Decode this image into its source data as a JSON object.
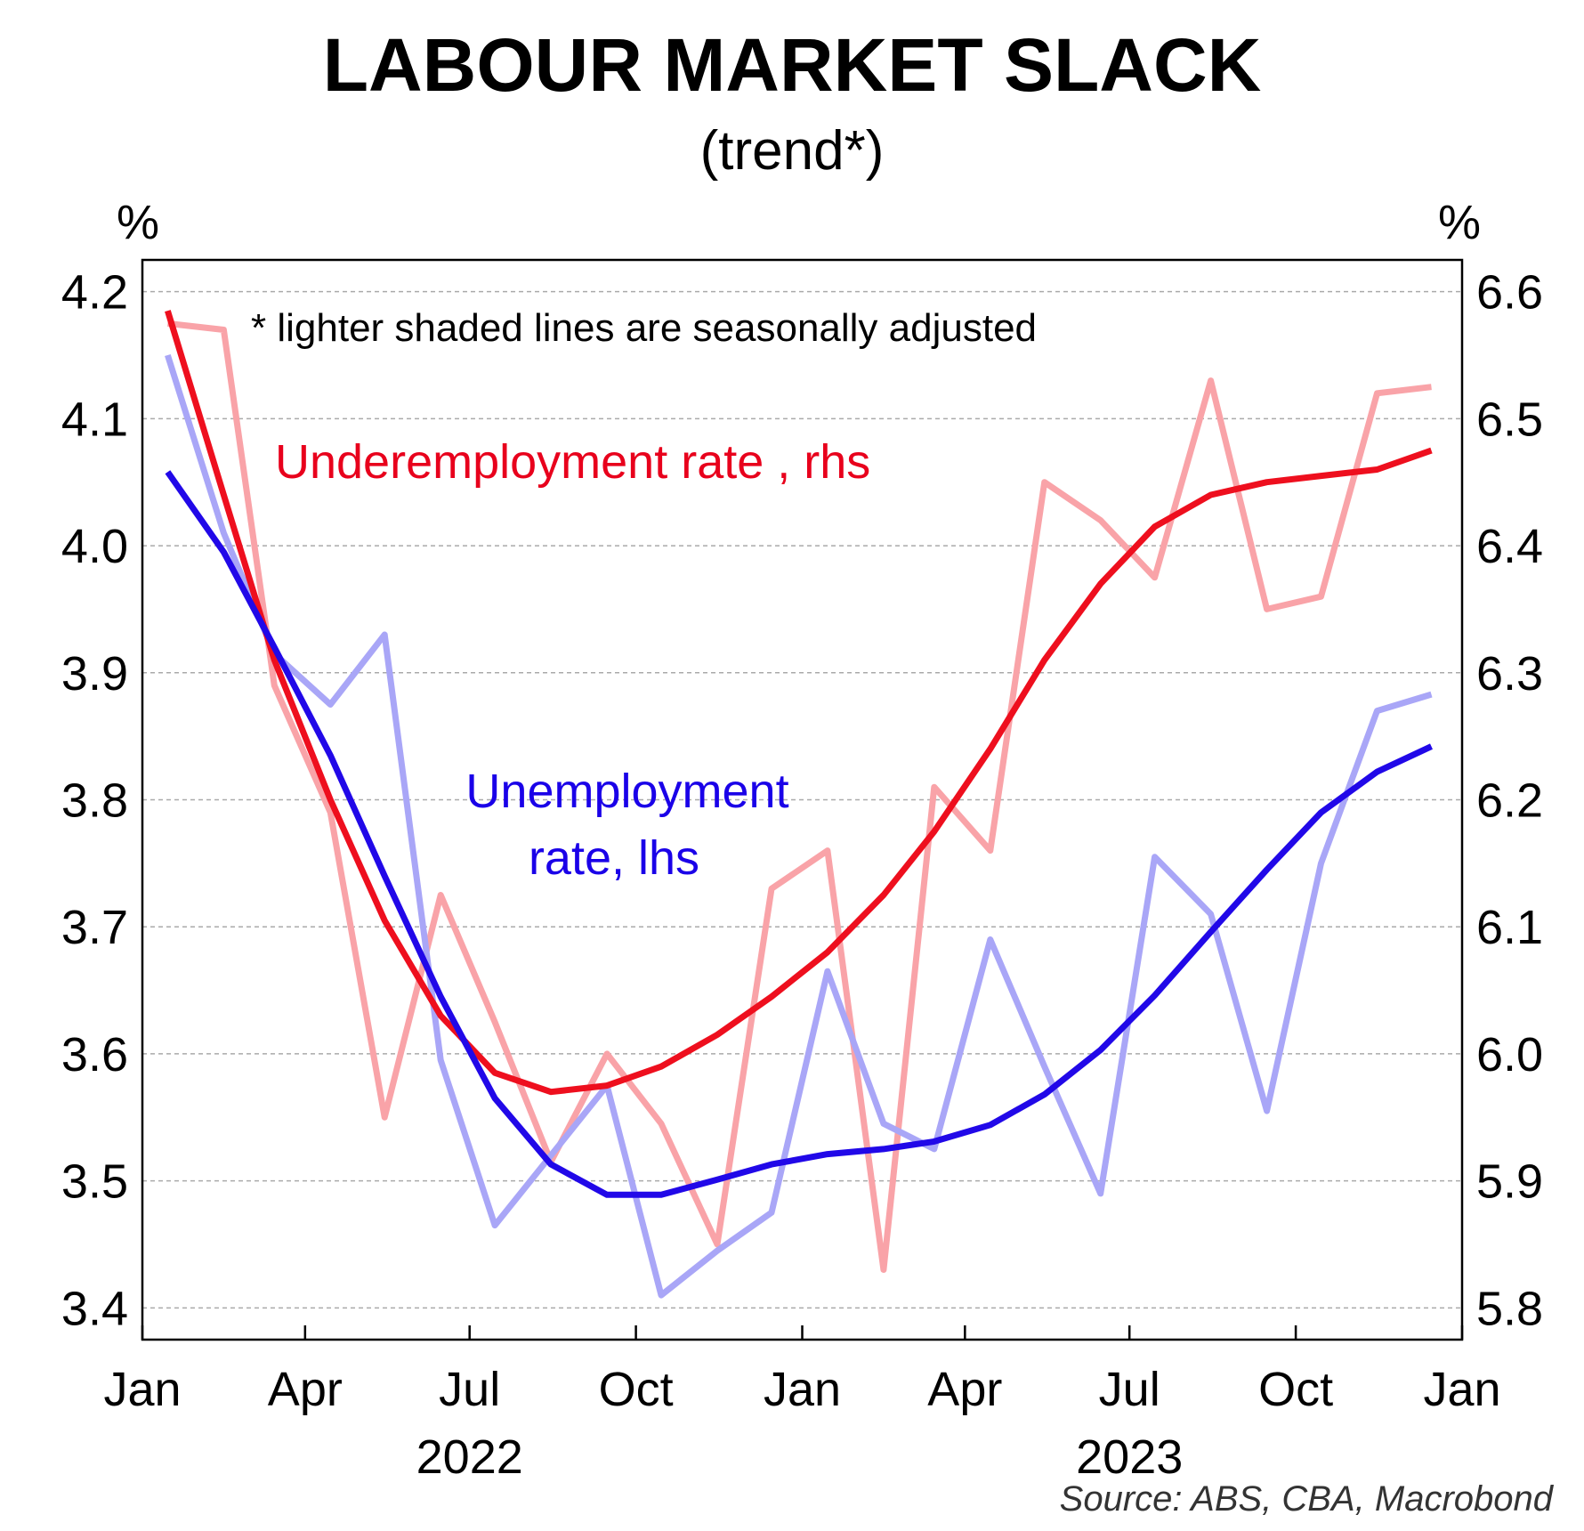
{
  "chart_data": {
    "type": "line",
    "title": "LABOUR MARKET SLACK",
    "subtitle": "(trend*)",
    "note": "*  lighter shaded lines are seasonally adjusted",
    "source": "Source: ABS, CBA, Macrobond",
    "left_axis": {
      "unit": "%",
      "ylim": [
        3.375,
        4.225
      ],
      "ticks": [
        "3.4",
        "3.5",
        "3.6",
        "3.7",
        "3.8",
        "3.9",
        "4.0",
        "4.1",
        "4.2"
      ]
    },
    "right_axis": {
      "unit": "%",
      "ylim": [
        5.775,
        6.625
      ],
      "ticks": [
        "5.8",
        "5.9",
        "6.0",
        "6.1",
        "6.2",
        "6.3",
        "6.4",
        "6.5",
        "6.6"
      ]
    },
    "x_axis": {
      "month_ticks": [
        "Jan",
        "Apr",
        "Jul",
        "Oct",
        "Jan",
        "Apr",
        "Jul",
        "Oct",
        "Jan"
      ],
      "year_labels": [
        "2022",
        "2023"
      ]
    },
    "grid": true,
    "annotations": {
      "underemployment_label": "Underemployment rate , rhs",
      "unemployment_label_line1": "Unemployment",
      "unemployment_label_line2": "rate, lhs"
    },
    "x": [
      "Jan 2022",
      "Feb 2022",
      "Mar 2022",
      "Apr 2022",
      "May 2022",
      "Jun 2022",
      "Jul 2022",
      "Aug 2022",
      "Sep 2022",
      "Oct 2022",
      "Nov 2022",
      "Dec 2022",
      "Jan 2023",
      "Feb 2023",
      "Mar 2023",
      "Apr 2023",
      "May 2023",
      "Jun 2023",
      "Jul 2023",
      "Aug 2023",
      "Sep 2023",
      "Oct 2023",
      "Nov 2023",
      "Dec 2023"
    ],
    "series": [
      {
        "name": "Underemployment rate , rhs",
        "axis": "right",
        "kind": "seasonally adjusted",
        "color": "#f9a3a8",
        "values": [
          6.575,
          6.57,
          6.29,
          6.19,
          5.95,
          6.125,
          6.025,
          5.915,
          6.0,
          5.945,
          5.85,
          6.13,
          6.16,
          5.83,
          6.21,
          6.16,
          6.45,
          6.42,
          6.375,
          6.53,
          6.35,
          6.36,
          6.52,
          6.525
        ]
      },
      {
        "name": "Unemployment rate, lhs",
        "axis": "left",
        "kind": "seasonally adjusted",
        "color": "#a9a6f7",
        "values": [
          4.15,
          4.01,
          3.915,
          3.875,
          3.93,
          3.595,
          3.465,
          3.52,
          3.575,
          3.41,
          3.445,
          3.475,
          3.665,
          3.545,
          3.525,
          3.69,
          3.59,
          3.49,
          3.755,
          3.71,
          3.555,
          3.75,
          3.87,
          3.883
        ]
      },
      {
        "name": "Underemployment rate , rhs",
        "axis": "right",
        "kind": "trend",
        "color": "#ee0f1e",
        "values": [
          6.585,
          6.44,
          6.31,
          6.2,
          6.105,
          6.03,
          5.985,
          5.97,
          5.975,
          5.99,
          6.015,
          6.045,
          6.08,
          6.125,
          6.175,
          6.24,
          6.31,
          6.37,
          6.415,
          6.44,
          6.45,
          6.455,
          6.46,
          6.475
        ]
      },
      {
        "name": "Unemployment rate, lhs",
        "axis": "left",
        "kind": "trend",
        "color": "#2108e8",
        "values": [
          4.058,
          3.995,
          3.92,
          3.835,
          3.74,
          3.645,
          3.565,
          3.513,
          3.489,
          3.489,
          3.501,
          3.513,
          3.521,
          3.525,
          3.531,
          3.544,
          3.568,
          3.603,
          3.646,
          3.696,
          3.745,
          3.79,
          3.822,
          3.842
        ]
      }
    ]
  }
}
